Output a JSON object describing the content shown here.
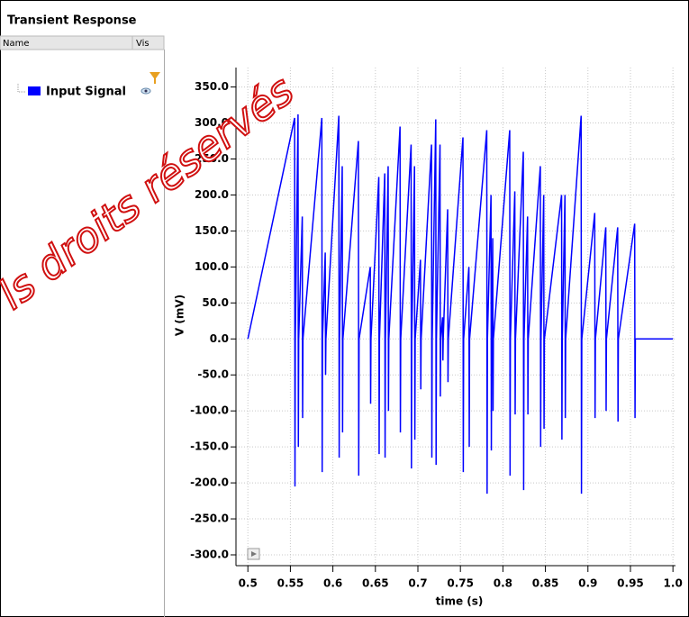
{
  "panel": {
    "title": "Transient Response",
    "columns": [
      "Name",
      "Vis"
    ]
  },
  "watermark": "ls droits réservés",
  "chart_data": {
    "type": "line",
    "xlabel": "time (s)",
    "ylabel": "V (mV)",
    "x": [
      0.5,
      0.555,
      0.5554,
      0.5558,
      0.559,
      0.5594,
      0.5598,
      0.564,
      0.5644,
      0.5648,
      0.587,
      0.5874,
      0.5878,
      0.591,
      0.5914,
      0.5918,
      0.607,
      0.6074,
      0.6078,
      0.611,
      0.6114,
      0.6118,
      0.63,
      0.6304,
      0.6308,
      0.644,
      0.6444,
      0.6448,
      0.654,
      0.6544,
      0.6548,
      0.661,
      0.6614,
      0.6618,
      0.665,
      0.6654,
      0.6658,
      0.679,
      0.6794,
      0.6798,
      0.692,
      0.6924,
      0.6928,
      0.696,
      0.6964,
      0.6968,
      0.703,
      0.7034,
      0.7038,
      0.716,
      0.7164,
      0.7168,
      0.721,
      0.7214,
      0.7218,
      0.726,
      0.7264,
      0.7268,
      0.729,
      0.7294,
      0.7298,
      0.735,
      0.7354,
      0.7358,
      0.753,
      0.7534,
      0.7538,
      0.76,
      0.7604,
      0.7608,
      0.781,
      0.7814,
      0.7818,
      0.786,
      0.7864,
      0.7868,
      0.788,
      0.7884,
      0.7888,
      0.808,
      0.8084,
      0.8088,
      0.814,
      0.8144,
      0.8148,
      0.824,
      0.8244,
      0.8248,
      0.829,
      0.8294,
      0.8298,
      0.844,
      0.8444,
      0.8448,
      0.848,
      0.8484,
      0.8488,
      0.869,
      0.8694,
      0.8698,
      0.873,
      0.8734,
      0.8738,
      0.892,
      0.8924,
      0.8928,
      0.908,
      0.9084,
      0.9088,
      0.921,
      0.9214,
      0.9218,
      0.935,
      0.9354,
      0.9358,
      0.955,
      0.9554,
      0.9558,
      1.0
    ],
    "series": [
      {
        "name": "Input Signal",
        "color": "#0000ff",
        "values": [
          0,
          307,
          -205,
          0,
          312,
          -150,
          0,
          170,
          -110,
          0,
          307,
          -185,
          0,
          120,
          -50,
          0,
          310,
          -165,
          0,
          240,
          -130,
          0,
          275,
          -190,
          0,
          100,
          -90,
          0,
          225,
          -160,
          0,
          230,
          -165,
          0,
          240,
          -100,
          0,
          295,
          -130,
          0,
          270,
          -180,
          0,
          240,
          -140,
          0,
          110,
          -70,
          0,
          270,
          -165,
          0,
          305,
          -175,
          0,
          270,
          -80,
          0,
          30,
          -30,
          0,
          180,
          -60,
          0,
          280,
          -185,
          0,
          100,
          -150,
          0,
          290,
          -215,
          0,
          200,
          -155,
          0,
          140,
          -100,
          0,
          290,
          -190,
          0,
          205,
          -105,
          0,
          260,
          -210,
          0,
          170,
          -105,
          0,
          240,
          -150,
          0,
          200,
          -125,
          0,
          200,
          -140,
          0,
          200,
          -110,
          0,
          310,
          -215,
          0,
          175,
          -110,
          0,
          155,
          -100,
          0,
          155,
          -115,
          0,
          160,
          -110,
          0,
          0
        ]
      }
    ],
    "xlim": [
      0.486,
      1.003
    ],
    "ylim": [
      -315,
      377
    ],
    "xticks": [
      0.5,
      0.55,
      0.6,
      0.65,
      0.7,
      0.75,
      0.8,
      0.85,
      0.9,
      0.95,
      {
        "value": 1,
        "label": "1.0"
      }
    ],
    "yticks": [
      {
        "value": 350,
        "label": "350.0"
      },
      {
        "value": 300,
        "label": "300.0"
      },
      {
        "value": 250,
        "label": "250.0"
      },
      {
        "value": 200,
        "label": "200.0"
      },
      {
        "value": 150,
        "label": "150.0"
      },
      {
        "value": 100,
        "label": "100.0"
      },
      {
        "value": 50,
        "label": "50.0"
      },
      {
        "value": 0,
        "label": "0.0"
      },
      {
        "value": -50,
        "label": "-50.0"
      },
      {
        "value": -100,
        "label": "-100.0"
      },
      {
        "value": -150,
        "label": "-150.0"
      },
      {
        "value": -200,
        "label": "-200.0"
      },
      {
        "value": -250,
        "label": "-250.0"
      },
      {
        "value": -300,
        "label": "-300.0"
      }
    ],
    "grid": true
  }
}
